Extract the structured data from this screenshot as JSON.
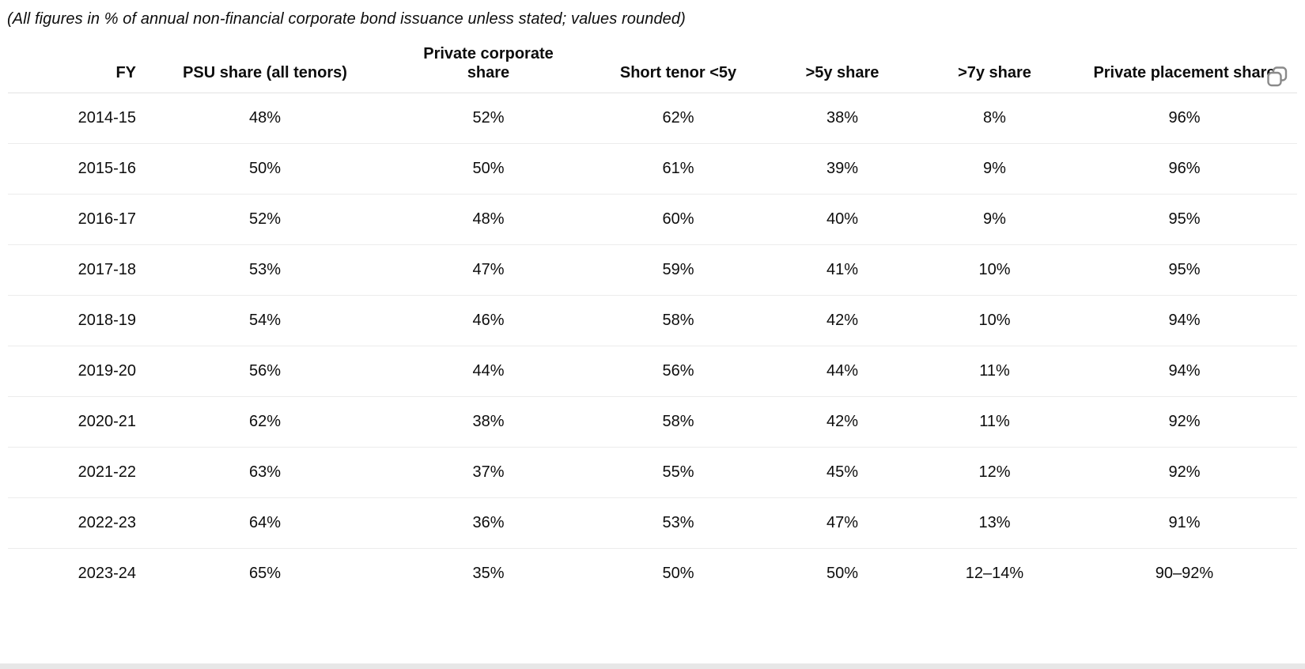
{
  "caption": "(All figures in % of annual non-financial corporate bond issuance unless stated; values rounded)",
  "table": {
    "columns": [
      {
        "label": "FY",
        "align": "right"
      },
      {
        "label": "PSU share (all tenors)",
        "align": "center"
      },
      {
        "label": "Private corporate share",
        "align": "center",
        "wrap": true
      },
      {
        "label": "Short tenor <5y",
        "align": "center"
      },
      {
        "label": ">5y share",
        "align": "center"
      },
      {
        "label": ">7y share",
        "align": "center"
      },
      {
        "label": "Private placement share",
        "align": "center"
      }
    ],
    "rows": [
      [
        "2014-15",
        "48%",
        "52%",
        "62%",
        "38%",
        "8%",
        "96%"
      ],
      [
        "2015-16",
        "50%",
        "50%",
        "61%",
        "39%",
        "9%",
        "96%"
      ],
      [
        "2016-17",
        "52%",
        "48%",
        "60%",
        "40%",
        "9%",
        "95%"
      ],
      [
        "2017-18",
        "53%",
        "47%",
        "59%",
        "41%",
        "10%",
        "95%"
      ],
      [
        "2018-19",
        "54%",
        "46%",
        "58%",
        "42%",
        "10%",
        "94%"
      ],
      [
        "2019-20",
        "56%",
        "44%",
        "56%",
        "44%",
        "11%",
        "94%"
      ],
      [
        "2020-21",
        "62%",
        "38%",
        "58%",
        "42%",
        "11%",
        "92%"
      ],
      [
        "2021-22",
        "63%",
        "37%",
        "55%",
        "45%",
        "12%",
        "92%"
      ],
      [
        "2022-23",
        "64%",
        "36%",
        "53%",
        "47%",
        "13%",
        "91%"
      ],
      [
        "2023-24",
        "65%",
        "35%",
        "50%",
        "50%",
        "12–14%",
        "90–92%"
      ]
    ]
  },
  "chart_data": {
    "type": "table",
    "title": "(All figures in % of annual non-financial corporate bond issuance unless stated; values rounded)",
    "categories": [
      "2014-15",
      "2015-16",
      "2016-17",
      "2017-18",
      "2018-19",
      "2019-20",
      "2020-21",
      "2021-22",
      "2022-23",
      "2023-24"
    ],
    "series": [
      {
        "name": "PSU share (all tenors)",
        "values": [
          "48%",
          "50%",
          "52%",
          "53%",
          "54%",
          "56%",
          "62%",
          "63%",
          "64%",
          "65%"
        ]
      },
      {
        "name": "Private corporate share",
        "values": [
          "52%",
          "50%",
          "48%",
          "47%",
          "46%",
          "44%",
          "38%",
          "37%",
          "36%",
          "35%"
        ]
      },
      {
        "name": "Short tenor <5y",
        "values": [
          "62%",
          "61%",
          "60%",
          "59%",
          "58%",
          "56%",
          "58%",
          "55%",
          "53%",
          "50%"
        ]
      },
      {
        "name": ">5y share",
        "values": [
          "38%",
          "39%",
          "40%",
          "41%",
          "42%",
          "44%",
          "42%",
          "45%",
          "47%",
          "50%"
        ]
      },
      {
        "name": ">7y share",
        "values": [
          "8%",
          "9%",
          "9%",
          "10%",
          "10%",
          "11%",
          "11%",
          "12%",
          "13%",
          "12–14%"
        ]
      },
      {
        "name": "Private placement share",
        "values": [
          "96%",
          "96%",
          "95%",
          "95%",
          "94%",
          "94%",
          "92%",
          "92%",
          "91%",
          "90–92%"
        ]
      }
    ]
  },
  "icons": {
    "copy": "copy-icon"
  },
  "colors": {
    "text": "#0d0d0d",
    "row_divider": "#ececec",
    "header_divider": "#e3e3e3",
    "icon_stroke": "#8a8a8a",
    "bottom_strip": "#e7e7e7",
    "background": "#ffffff"
  }
}
